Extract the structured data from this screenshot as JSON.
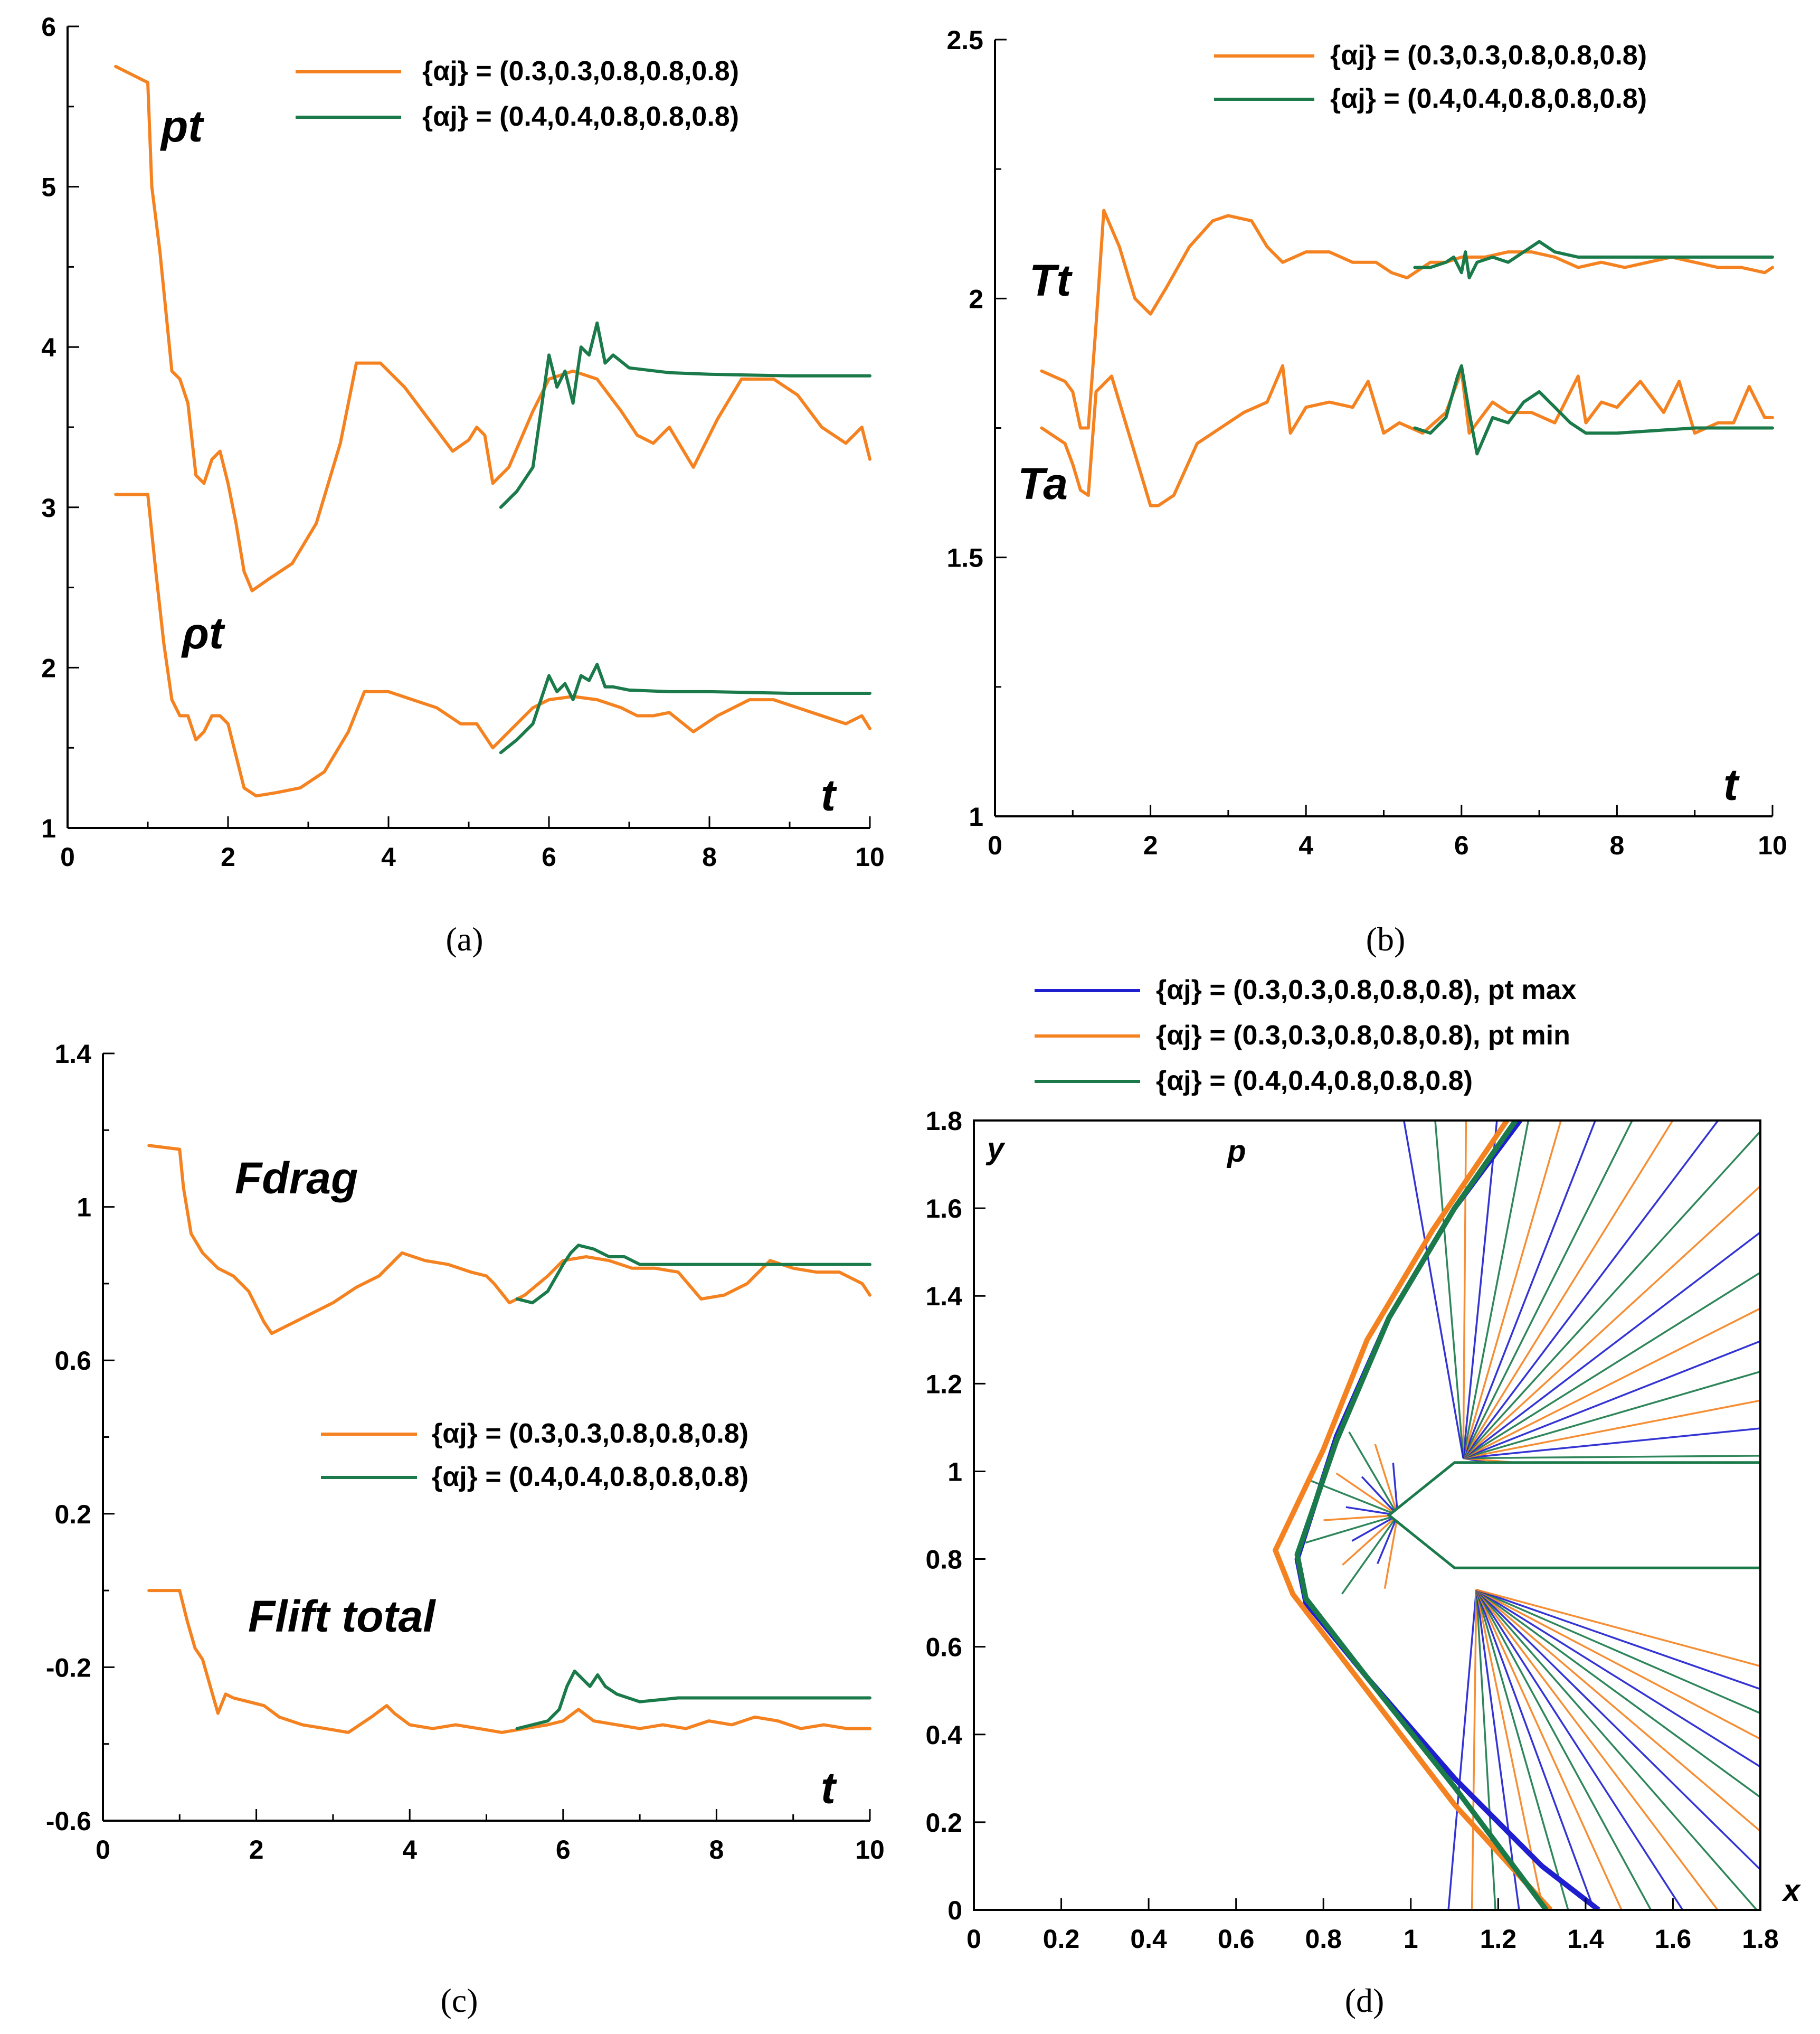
{
  "colors": {
    "orange": "#F58220",
    "green": "#1A7A4A",
    "blue": "#1F1FD0"
  },
  "legend": {
    "a1": "{αj} = (0.3,0.3,0.8,0.8,0.8)",
    "a2": "{αj} = (0.4,0.4,0.8,0.8,0.8)",
    "d1": "{αj} = (0.3,0.3,0.8,0.8,0.8), pt max",
    "d2": "{αj} = (0.3,0.3,0.8,0.8,0.8), pt min",
    "d3": "{αj} = (0.4,0.4,0.8,0.8,0.8)"
  },
  "chart_data": [
    {
      "id": "a",
      "type": "line",
      "caption": "(a)",
      "xlabel": "t",
      "xlim": [
        0,
        10
      ],
      "ylim": [
        1,
        6
      ],
      "xticks": [
        "0",
        "2",
        "4",
        "6",
        "8",
        "10"
      ],
      "yticks": [
        "1",
        "2",
        "3",
        "4",
        "5",
        "6"
      ],
      "curve_labels": {
        "pt": "pt",
        "rho": "ρt"
      },
      "series": [
        {
          "name": "pt {αj}=(0.3,0.3,0.8,0.8,0.8)",
          "color": "orange",
          "x": [
            0.6,
            1.0,
            1.05,
            1.15,
            1.3,
            1.4,
            1.5,
            1.6,
            1.7,
            1.8,
            1.9,
            2.0,
            2.1,
            2.2,
            2.3,
            2.5,
            2.8,
            3.1,
            3.4,
            3.6,
            3.9,
            4.2,
            4.5,
            4.8,
            5.0,
            5.1,
            5.2,
            5.3,
            5.5,
            5.8,
            6.0,
            6.3,
            6.6,
            6.9,
            7.1,
            7.3,
            7.5,
            7.8,
            8.1,
            8.4,
            8.8,
            9.1,
            9.4,
            9.7,
            9.9,
            10.0
          ],
          "y": [
            5.75,
            5.65,
            5.0,
            4.6,
            3.85,
            3.8,
            3.65,
            3.2,
            3.15,
            3.3,
            3.35,
            3.15,
            2.9,
            2.6,
            2.48,
            2.55,
            2.65,
            2.9,
            3.4,
            3.9,
            3.9,
            3.75,
            3.55,
            3.35,
            3.42,
            3.5,
            3.45,
            3.15,
            3.25,
            3.6,
            3.8,
            3.85,
            3.8,
            3.6,
            3.45,
            3.4,
            3.5,
            3.25,
            3.55,
            3.8,
            3.8,
            3.7,
            3.5,
            3.4,
            3.5,
            3.3
          ]
        },
        {
          "name": "pt {αj}=(0.4,0.4,0.8,0.8,0.8)",
          "color": "green",
          "x": [
            5.4,
            5.6,
            5.8,
            5.9,
            6.0,
            6.1,
            6.2,
            6.3,
            6.4,
            6.5,
            6.6,
            6.7,
            6.8,
            7.0,
            7.5,
            8.0,
            9.0,
            10.0
          ],
          "y": [
            3.0,
            3.1,
            3.25,
            3.6,
            3.95,
            3.75,
            3.85,
            3.65,
            4.0,
            3.95,
            4.15,
            3.9,
            3.95,
            3.87,
            3.84,
            3.83,
            3.82,
            3.82
          ]
        },
        {
          "name": "ρt {αj}=(0.3,0.3,0.8,0.8,0.8)",
          "color": "orange",
          "x": [
            0.6,
            1.0,
            1.1,
            1.2,
            1.3,
            1.4,
            1.5,
            1.6,
            1.7,
            1.8,
            1.9,
            2.0,
            2.1,
            2.2,
            2.35,
            2.6,
            2.9,
            3.2,
            3.5,
            3.7,
            4.0,
            4.3,
            4.6,
            4.9,
            5.1,
            5.3,
            5.5,
            5.8,
            6.0,
            6.3,
            6.6,
            6.9,
            7.1,
            7.3,
            7.5,
            7.8,
            8.1,
            8.5,
            8.8,
            9.1,
            9.4,
            9.7,
            9.9,
            10.0
          ],
          "y": [
            3.08,
            3.08,
            2.6,
            2.15,
            1.8,
            1.7,
            1.7,
            1.55,
            1.6,
            1.7,
            1.7,
            1.65,
            1.45,
            1.25,
            1.2,
            1.22,
            1.25,
            1.35,
            1.6,
            1.85,
            1.85,
            1.8,
            1.75,
            1.65,
            1.65,
            1.5,
            1.6,
            1.75,
            1.8,
            1.82,
            1.8,
            1.75,
            1.7,
            1.7,
            1.72,
            1.6,
            1.7,
            1.8,
            1.8,
            1.75,
            1.7,
            1.65,
            1.7,
            1.62
          ]
        },
        {
          "name": "ρt {αj}=(0.4,0.4,0.8,0.8,0.8)",
          "color": "green",
          "x": [
            5.4,
            5.6,
            5.8,
            5.9,
            6.0,
            6.1,
            6.2,
            6.3,
            6.4,
            6.5,
            6.6,
            6.7,
            6.8,
            7.0,
            7.5,
            8.0,
            9.0,
            10.0
          ],
          "y": [
            1.47,
            1.55,
            1.65,
            1.8,
            1.95,
            1.85,
            1.9,
            1.8,
            1.95,
            1.92,
            2.02,
            1.88,
            1.88,
            1.86,
            1.85,
            1.85,
            1.84,
            1.84
          ]
        }
      ]
    },
    {
      "id": "b",
      "type": "line",
      "caption": "(b)",
      "xlabel": "t",
      "xlim": [
        0,
        10
      ],
      "ylim": [
        1,
        2.5
      ],
      "xticks": [
        "0",
        "2",
        "4",
        "6",
        "8",
        "10"
      ],
      "yticks": [
        "1",
        "1.5",
        "2",
        "2.5"
      ],
      "curve_labels": {
        "tt": "Tt",
        "ta": "Ta"
      },
      "series": [
        {
          "name": "Tt {αj}=(0.3,0.3,0.8,0.8,0.8)",
          "color": "orange",
          "x": [
            0.6,
            0.9,
            1.0,
            1.1,
            1.2,
            1.3,
            1.4,
            1.6,
            1.8,
            2.0,
            2.2,
            2.5,
            2.8,
            3.0,
            3.3,
            3.5,
            3.7,
            4.0,
            4.3,
            4.6,
            4.9,
            5.1,
            5.3,
            5.6,
            5.8,
            6.0,
            6.3,
            6.6,
            6.9,
            7.2,
            7.5,
            7.8,
            8.1,
            8.4,
            8.7,
            9.0,
            9.3,
            9.6,
            9.9,
            10.0
          ],
          "y": [
            1.86,
            1.84,
            1.82,
            1.75,
            1.75,
            1.95,
            2.17,
            2.1,
            2.0,
            1.97,
            2.02,
            2.1,
            2.15,
            2.16,
            2.15,
            2.1,
            2.07,
            2.09,
            2.09,
            2.07,
            2.07,
            2.05,
            2.04,
            2.07,
            2.07,
            2.08,
            2.08,
            2.09,
            2.09,
            2.08,
            2.06,
            2.07,
            2.06,
            2.07,
            2.08,
            2.07,
            2.06,
            2.06,
            2.05,
            2.06
          ]
        },
        {
          "name": "Tt {αj}=(0.4,0.4,0.8,0.8,0.8)",
          "color": "green",
          "x": [
            5.4,
            5.6,
            5.8,
            5.9,
            6.0,
            6.05,
            6.1,
            6.2,
            6.4,
            6.6,
            6.8,
            7.0,
            7.2,
            7.5,
            8.0,
            9.0,
            10.0
          ],
          "y": [
            2.06,
            2.06,
            2.07,
            2.08,
            2.05,
            2.09,
            2.04,
            2.07,
            2.08,
            2.07,
            2.09,
            2.11,
            2.09,
            2.08,
            2.08,
            2.08,
            2.08
          ]
        },
        {
          "name": "Ta {αj}=(0.3,0.3,0.8,0.8,0.8)",
          "color": "orange",
          "x": [
            0.6,
            0.9,
            1.0,
            1.1,
            1.2,
            1.3,
            1.5,
            1.7,
            1.9,
            2.0,
            2.1,
            2.3,
            2.6,
            2.9,
            3.2,
            3.5,
            3.7,
            3.8,
            4.0,
            4.3,
            4.6,
            4.8,
            5.0,
            5.2,
            5.5,
            5.8,
            6.0,
            6.1,
            6.2,
            6.4,
            6.6,
            6.9,
            7.2,
            7.5,
            7.6,
            7.8,
            8.0,
            8.3,
            8.6,
            8.8,
            9.0,
            9.3,
            9.5,
            9.7,
            9.9,
            10.0
          ],
          "y": [
            1.75,
            1.72,
            1.68,
            1.63,
            1.62,
            1.82,
            1.85,
            1.75,
            1.65,
            1.6,
            1.6,
            1.62,
            1.72,
            1.75,
            1.78,
            1.8,
            1.87,
            1.74,
            1.79,
            1.8,
            1.79,
            1.84,
            1.74,
            1.76,
            1.74,
            1.78,
            1.86,
            1.74,
            1.76,
            1.8,
            1.78,
            1.78,
            1.76,
            1.85,
            1.76,
            1.8,
            1.79,
            1.84,
            1.78,
            1.84,
            1.74,
            1.76,
            1.76,
            1.83,
            1.77,
            1.77
          ]
        },
        {
          "name": "Ta {αj}=(0.4,0.4,0.8,0.8,0.8)",
          "color": "green",
          "x": [
            5.4,
            5.6,
            5.8,
            5.95,
            6.0,
            6.1,
            6.2,
            6.4,
            6.6,
            6.8,
            7.0,
            7.2,
            7.4,
            7.6,
            7.8,
            8.0,
            9.0,
            10.0
          ],
          "y": [
            1.75,
            1.74,
            1.77,
            1.85,
            1.87,
            1.78,
            1.7,
            1.77,
            1.76,
            1.8,
            1.82,
            1.79,
            1.76,
            1.74,
            1.74,
            1.74,
            1.75,
            1.75
          ]
        }
      ]
    },
    {
      "id": "c",
      "type": "line",
      "caption": "(c)",
      "xlabel": "t",
      "xlim": [
        0,
        10
      ],
      "ylim": [
        -0.6,
        1.4
      ],
      "xticks": [
        "0",
        "2",
        "4",
        "6",
        "8",
        "10"
      ],
      "yticks": [
        "-0.6",
        "-0.2",
        "0.2",
        "0.6",
        "1",
        "1.4"
      ],
      "curve_labels": {
        "fd": "Fdrag",
        "fl": "Flift total"
      },
      "series": [
        {
          "name": "Fdrag {αj}=(0.3,0.3,0.8,0.8,0.8)",
          "color": "orange",
          "x": [
            0.6,
            1.0,
            1.05,
            1.15,
            1.3,
            1.5,
            1.7,
            1.9,
            2.1,
            2.2,
            2.4,
            2.7,
            3.0,
            3.3,
            3.6,
            3.9,
            4.2,
            4.5,
            4.8,
            5.0,
            5.1,
            5.3,
            5.5,
            5.8,
            6.0,
            6.3,
            6.6,
            6.9,
            7.2,
            7.5,
            7.8,
            8.1,
            8.4,
            8.7,
            9.0,
            9.3,
            9.6,
            9.9,
            10.0
          ],
          "y": [
            1.16,
            1.15,
            1.05,
            0.93,
            0.88,
            0.84,
            0.82,
            0.78,
            0.7,
            0.67,
            0.69,
            0.72,
            0.75,
            0.79,
            0.82,
            0.88,
            0.86,
            0.85,
            0.83,
            0.82,
            0.8,
            0.75,
            0.77,
            0.82,
            0.86,
            0.87,
            0.86,
            0.84,
            0.84,
            0.83,
            0.76,
            0.77,
            0.8,
            0.86,
            0.84,
            0.83,
            0.83,
            0.8,
            0.77
          ]
        },
        {
          "name": "Fdrag {αj}=(0.4,0.4,0.8,0.8,0.8)",
          "color": "green",
          "x": [
            5.4,
            5.6,
            5.8,
            6.0,
            6.1,
            6.2,
            6.4,
            6.6,
            6.8,
            7.0,
            7.5,
            8.0,
            9.0,
            10.0
          ],
          "y": [
            0.76,
            0.75,
            0.78,
            0.85,
            0.88,
            0.9,
            0.89,
            0.87,
            0.87,
            0.85,
            0.85,
            0.85,
            0.85,
            0.85
          ]
        },
        {
          "name": "Flift total {αj}=(0.3,0.3,0.8,0.8,0.8)",
          "color": "orange",
          "x": [
            0.6,
            1.0,
            1.1,
            1.2,
            1.3,
            1.4,
            1.5,
            1.6,
            1.7,
            1.9,
            2.1,
            2.3,
            2.6,
            2.9,
            3.2,
            3.5,
            3.7,
            3.8,
            4.0,
            4.3,
            4.6,
            4.9,
            5.2,
            5.5,
            5.8,
            6.0,
            6.2,
            6.4,
            6.7,
            7.0,
            7.3,
            7.6,
            7.9,
            8.2,
            8.5,
            8.8,
            9.1,
            9.4,
            9.7,
            10.0
          ],
          "y": [
            0.0,
            0.0,
            -0.08,
            -0.15,
            -0.18,
            -0.25,
            -0.32,
            -0.27,
            -0.28,
            -0.29,
            -0.3,
            -0.33,
            -0.35,
            -0.36,
            -0.37,
            -0.33,
            -0.3,
            -0.32,
            -0.35,
            -0.36,
            -0.35,
            -0.36,
            -0.37,
            -0.36,
            -0.35,
            -0.34,
            -0.31,
            -0.34,
            -0.35,
            -0.36,
            -0.35,
            -0.36,
            -0.34,
            -0.35,
            -0.33,
            -0.34,
            -0.36,
            -0.35,
            -0.36,
            -0.36
          ]
        },
        {
          "name": "Flift total {αj}=(0.4,0.4,0.8,0.8,0.8)",
          "color": "green",
          "x": [
            5.4,
            5.6,
            5.8,
            5.95,
            6.05,
            6.15,
            6.25,
            6.35,
            6.45,
            6.55,
            6.7,
            7.0,
            7.5,
            8.0,
            9.0,
            10.0
          ],
          "y": [
            -0.36,
            -0.35,
            -0.34,
            -0.31,
            -0.25,
            -0.21,
            -0.23,
            -0.25,
            -0.22,
            -0.25,
            -0.27,
            -0.29,
            -0.28,
            -0.28,
            -0.28,
            -0.28
          ]
        }
      ]
    },
    {
      "id": "d",
      "type": "line",
      "caption": "(d)",
      "title": "p",
      "xlabel": "x",
      "ylabel": "y",
      "xlim": [
        0,
        1.8
      ],
      "ylim": [
        0,
        1.8
      ],
      "xticks": [
        "0",
        "0.2",
        "0.4",
        "0.6",
        "0.8",
        "1",
        "1.2",
        "1.4",
        "1.6",
        "1.8"
      ],
      "yticks": [
        "0",
        "0.2",
        "0.4",
        "0.6",
        "0.8",
        "1",
        "1.2",
        "1.4",
        "1.6",
        "1.8"
      ],
      "body": {
        "x": [
          1.1,
          1.8,
          1.8,
          1.1,
          0.95
        ],
        "y": [
          1.02,
          1.02,
          0.78,
          0.78,
          0.9
        ]
      },
      "series": [
        {
          "name": "shock pt max",
          "color": "blue",
          "x": [
            1.25,
            1.1,
            0.95,
            0.83,
            0.74,
            0.76,
            0.9,
            1.1,
            1.3,
            1.43
          ],
          "y": [
            1.8,
            1.6,
            1.35,
            1.08,
            0.8,
            0.7,
            0.53,
            0.3,
            0.1,
            0.0
          ]
        },
        {
          "name": "shock pt min",
          "color": "orange",
          "x": [
            1.22,
            1.05,
            0.9,
            0.8,
            0.69,
            0.73,
            0.9,
            1.1,
            1.32
          ],
          "y": [
            1.8,
            1.55,
            1.3,
            1.05,
            0.82,
            0.72,
            0.5,
            0.24,
            0.0
          ]
        },
        {
          "name": "shock {αj}=(0.4,0.4,0.8,0.8,0.8)",
          "color": "green",
          "x": [
            1.24,
            1.1,
            0.95,
            0.83,
            0.74,
            0.76,
            0.9,
            1.1,
            1.31
          ],
          "y": [
            1.8,
            1.6,
            1.35,
            1.07,
            0.81,
            0.71,
            0.53,
            0.28,
            0.0
          ]
        }
      ]
    }
  ]
}
